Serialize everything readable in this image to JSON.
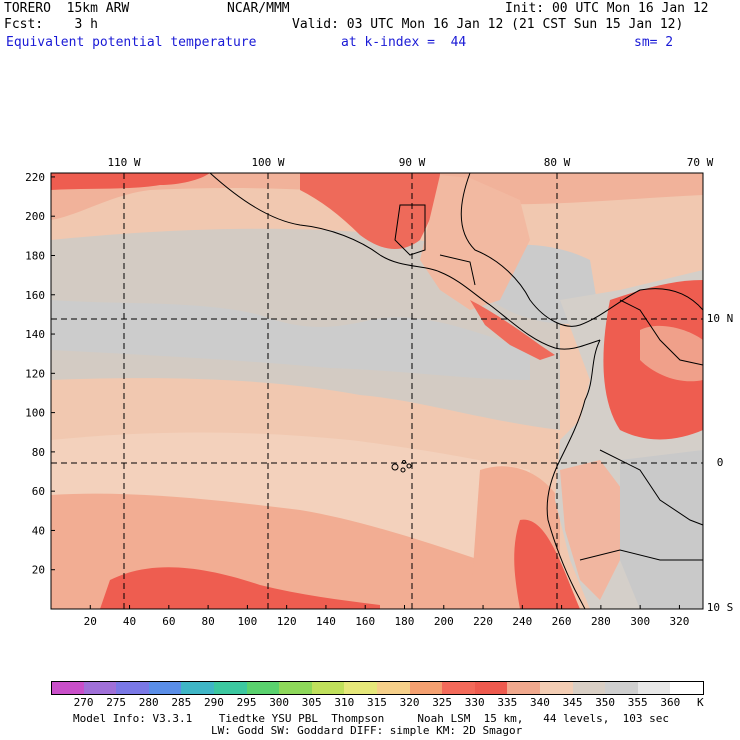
{
  "header": {
    "model": "TORERO  15km ARW",
    "org": "NCAR/MMM",
    "init": "Init: 00 UTC Mon 16 Jan 12",
    "fcst": "Fcst:    3 h",
    "valid": "Valid: 03 UTC Mon 16 Jan 12 (21 CST Sun 15 Jan 12)",
    "field": "Equivalent potential temperature",
    "level": "at k-index =  44",
    "smooth": "sm= 2"
  },
  "map": {
    "lon_labels": [
      "110 W",
      "100 W",
      "90 W",
      "80 W",
      "70 W"
    ],
    "lat_labels": [
      "10 N",
      "0",
      "10 S"
    ],
    "y_ticks": [
      "20",
      "40",
      "60",
      "80",
      "100",
      "120",
      "140",
      "160",
      "180",
      "200",
      "220"
    ],
    "x_ticks": [
      "20",
      "40",
      "60",
      "80",
      "100",
      "120",
      "140",
      "160",
      "180",
      "200",
      "220",
      "240",
      "260",
      "280",
      "300",
      "320"
    ]
  },
  "colorbar": {
    "values": [
      "270",
      "275",
      "280",
      "285",
      "290",
      "295",
      "300",
      "305",
      "310",
      "315",
      "320",
      "325",
      "330",
      "335",
      "340",
      "345",
      "350",
      "355",
      "360"
    ],
    "unit": "K",
    "colors": [
      "#c94fc9",
      "#a070d8",
      "#7a78e6",
      "#5a8ee8",
      "#3fb6c6",
      "#3cc8a0",
      "#5ad26e",
      "#8ed85a",
      "#c0e05c",
      "#e6e87a",
      "#f6d08a",
      "#f4a070",
      "#f36a5a",
      "#ee5a4e",
      "#f1a98e",
      "#f3cdb4",
      "#d9cfc5",
      "#cfcfcf",
      "#e8e8e8",
      "#ffffff"
    ]
  },
  "footer": {
    "line1": "Model Info: V3.3.1    Tiedtke YSU PBL  Thompson     Noah LSM  15 km,   44 levels,  103 sec",
    "line2": "LW: Godd SW: Goddard DIFF: simple KM: 2D Smagor"
  }
}
